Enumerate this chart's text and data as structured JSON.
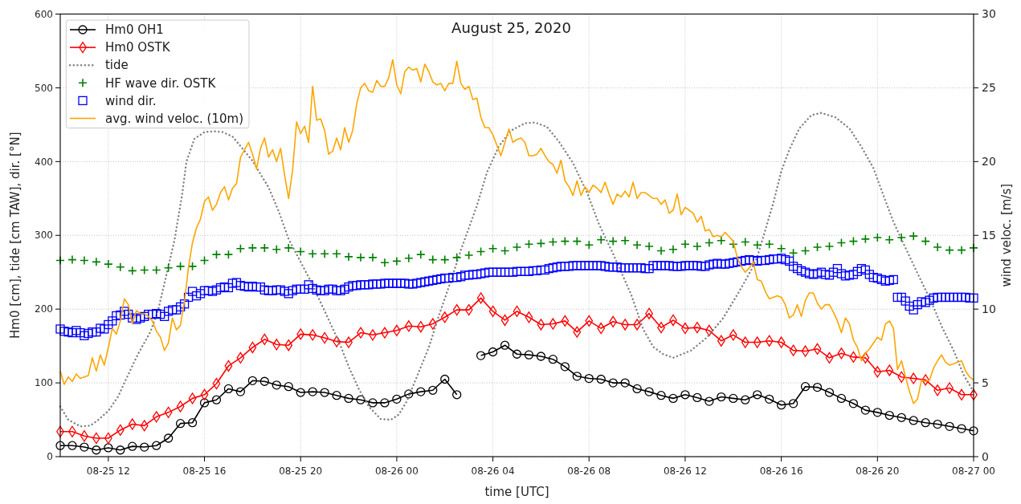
{
  "chart_data": {
    "type": "line",
    "title": "August 25, 2020",
    "xlabel": "time [UTC]",
    "ylabel": "Hm0 [cm], tide [cm TAW], dir. [°N]",
    "y2label": "wind veloc. [m/s]",
    "xlim": [
      "2020-08-25T10:00",
      "2020-08-27T00:00"
    ],
    "xticks": [
      {
        "value": "2020-08-25T12:00",
        "label": "08-25 12"
      },
      {
        "value": "2020-08-25T16:00",
        "label": "08-25 16"
      },
      {
        "value": "2020-08-25T20:00",
        "label": "08-25 20"
      },
      {
        "value": "2020-08-26T00:00",
        "label": "08-26 00"
      },
      {
        "value": "2020-08-26T04:00",
        "label": "08-26 04"
      },
      {
        "value": "2020-08-26T08:00",
        "label": "08-26 08"
      },
      {
        "value": "2020-08-26T12:00",
        "label": "08-26 12"
      },
      {
        "value": "2020-08-26T16:00",
        "label": "08-26 16"
      },
      {
        "value": "2020-08-26T20:00",
        "label": "08-26 20"
      },
      {
        "value": "2020-08-27T00:00",
        "label": "08-27 00"
      }
    ],
    "ylim": [
      0,
      600
    ],
    "yticks": [
      0,
      100,
      200,
      300,
      400,
      500,
      600
    ],
    "y2lim": [
      0,
      30
    ],
    "y2ticks": [
      0,
      5,
      10,
      15,
      20,
      25,
      30
    ],
    "grid": true,
    "legend": "top left",
    "x": [
      "2020-08-25T10:00",
      "2020-08-25T10:10",
      "2020-08-25T10:20",
      "2020-08-25T10:30",
      "2020-08-25T10:40",
      "2020-08-25T10:50",
      "2020-08-25T11:00",
      "2020-08-25T11:10",
      "2020-08-25T11:20",
      "2020-08-25T11:30",
      "2020-08-25T11:40",
      "2020-08-25T11:50",
      "2020-08-25T12:00",
      "2020-08-25T12:10",
      "2020-08-25T12:20",
      "2020-08-25T12:30",
      "2020-08-25T12:40",
      "2020-08-25T12:50",
      "2020-08-25T13:00",
      "2020-08-25T13:10",
      "2020-08-25T13:20",
      "2020-08-25T13:30",
      "2020-08-25T13:40",
      "2020-08-25T13:50",
      "2020-08-25T14:00",
      "2020-08-25T14:10",
      "2020-08-25T14:20",
      "2020-08-25T14:30",
      "2020-08-25T14:40",
      "2020-08-25T14:50",
      "2020-08-25T15:00",
      "2020-08-25T15:10",
      "2020-08-25T15:20",
      "2020-08-25T15:30",
      "2020-08-25T15:40",
      "2020-08-25T15:50",
      "2020-08-25T16:00",
      "2020-08-25T16:10",
      "2020-08-25T16:20",
      "2020-08-25T16:30",
      "2020-08-25T16:40",
      "2020-08-25T16:50",
      "2020-08-25T17:00",
      "2020-08-25T17:10",
      "2020-08-25T17:20",
      "2020-08-25T17:30",
      "2020-08-25T17:40",
      "2020-08-25T17:50",
      "2020-08-25T18:00",
      "2020-08-25T18:10",
      "2020-08-25T18:20",
      "2020-08-25T18:30",
      "2020-08-25T18:40",
      "2020-08-25T18:50",
      "2020-08-25T19:00",
      "2020-08-25T19:10",
      "2020-08-25T19:20",
      "2020-08-25T19:30",
      "2020-08-25T19:40",
      "2020-08-25T19:50",
      "2020-08-25T20:00",
      "2020-08-25T20:10",
      "2020-08-25T20:20",
      "2020-08-25T20:30",
      "2020-08-25T20:40",
      "2020-08-25T20:50",
      "2020-08-25T21:00",
      "2020-08-25T21:10",
      "2020-08-25T21:20",
      "2020-08-25T21:30",
      "2020-08-25T21:40",
      "2020-08-25T21:50",
      "2020-08-25T22:00",
      "2020-08-25T22:10",
      "2020-08-25T22:20",
      "2020-08-25T22:30",
      "2020-08-25T22:40",
      "2020-08-25T22:50",
      "2020-08-25T23:00",
      "2020-08-25T23:10",
      "2020-08-25T23:20",
      "2020-08-25T23:30",
      "2020-08-25T23:40",
      "2020-08-25T23:50",
      "2020-08-26T00:00",
      "2020-08-26T00:10",
      "2020-08-26T00:20",
      "2020-08-26T00:30",
      "2020-08-26T00:40",
      "2020-08-26T00:50",
      "2020-08-26T01:00",
      "2020-08-26T01:10",
      "2020-08-26T01:20",
      "2020-08-26T01:30",
      "2020-08-26T01:40",
      "2020-08-26T01:50",
      "2020-08-26T02:00",
      "2020-08-26T02:10",
      "2020-08-26T02:20",
      "2020-08-26T02:30",
      "2020-08-26T02:40",
      "2020-08-26T02:50",
      "2020-08-26T03:00",
      "2020-08-26T03:10",
      "2020-08-26T03:20",
      "2020-08-26T03:30",
      "2020-08-26T03:40",
      "2020-08-26T03:50",
      "2020-08-26T04:00",
      "2020-08-26T04:10",
      "2020-08-26T04:20",
      "2020-08-26T04:30",
      "2020-08-26T04:40",
      "2020-08-26T04:50",
      "2020-08-26T05:00",
      "2020-08-26T05:10",
      "2020-08-26T05:20",
      "2020-08-26T05:30",
      "2020-08-26T05:40",
      "2020-08-26T05:50",
      "2020-08-26T06:00",
      "2020-08-26T06:10",
      "2020-08-26T06:20",
      "2020-08-26T06:30",
      "2020-08-26T06:40",
      "2020-08-26T06:50",
      "2020-08-26T07:00",
      "2020-08-26T07:10",
      "2020-08-26T07:20",
      "2020-08-26T07:30",
      "2020-08-26T07:40",
      "2020-08-26T07:50",
      "2020-08-26T08:00",
      "2020-08-26T08:10",
      "2020-08-26T08:20",
      "2020-08-26T08:30",
      "2020-08-26T08:40",
      "2020-08-26T08:50",
      "2020-08-26T09:00",
      "2020-08-26T09:10",
      "2020-08-26T09:20",
      "2020-08-26T09:30",
      "2020-08-26T09:40",
      "2020-08-26T09:50",
      "2020-08-26T10:00",
      "2020-08-26T10:10",
      "2020-08-26T10:20",
      "2020-08-26T10:30",
      "2020-08-26T10:40",
      "2020-08-26T10:50",
      "2020-08-26T11:00",
      "2020-08-26T11:10",
      "2020-08-26T11:20",
      "2020-08-26T11:30",
      "2020-08-26T11:40",
      "2020-08-26T11:50",
      "2020-08-26T12:00",
      "2020-08-26T12:10",
      "2020-08-26T12:20",
      "2020-08-26T12:30",
      "2020-08-26T12:40",
      "2020-08-26T12:50",
      "2020-08-26T13:00",
      "2020-08-26T13:10",
      "2020-08-26T13:20",
      "2020-08-26T13:30",
      "2020-08-26T13:40",
      "2020-08-26T13:50",
      "2020-08-26T14:00",
      "2020-08-26T14:10",
      "2020-08-26T14:20",
      "2020-08-26T14:30",
      "2020-08-26T14:40",
      "2020-08-26T14:50",
      "2020-08-26T15:00",
      "2020-08-26T15:10",
      "2020-08-26T15:20",
      "2020-08-26T15:30",
      "2020-08-26T15:40",
      "2020-08-26T15:50",
      "2020-08-26T16:00",
      "2020-08-26T16:10",
      "2020-08-26T16:20",
      "2020-08-26T16:30",
      "2020-08-26T16:40",
      "2020-08-26T16:50",
      "2020-08-26T17:00",
      "2020-08-26T17:10",
      "2020-08-26T17:20",
      "2020-08-26T17:30",
      "2020-08-26T17:40",
      "2020-08-26T17:50",
      "2020-08-26T18:00",
      "2020-08-26T18:10",
      "2020-08-26T18:20",
      "2020-08-26T18:30",
      "2020-08-26T18:40",
      "2020-08-26T18:50",
      "2020-08-26T19:00",
      "2020-08-26T19:10",
      "2020-08-26T19:20",
      "2020-08-26T19:30",
      "2020-08-26T19:40",
      "2020-08-26T19:50",
      "2020-08-26T20:00",
      "2020-08-26T20:10",
      "2020-08-26T20:20",
      "2020-08-26T20:30",
      "2020-08-26T20:40",
      "2020-08-26T20:50",
      "2020-08-26T21:00",
      "2020-08-26T21:10",
      "2020-08-26T21:20",
      "2020-08-26T21:30",
      "2020-08-26T21:40",
      "2020-08-26T21:50",
      "2020-08-26T22:00",
      "2020-08-26T22:10",
      "2020-08-26T22:20",
      "2020-08-26T22:30",
      "2020-08-26T22:40",
      "2020-08-26T22:50",
      "2020-08-26T23:00",
      "2020-08-26T23:10",
      "2020-08-26T23:20",
      "2020-08-26T23:30",
      "2020-08-26T23:40",
      "2020-08-26T23:50",
      "2020-08-27T00:00"
    ],
    "series": [
      {
        "name": "Hm0 OH1",
        "color": "#000000",
        "marker": "circle",
        "x": [
          "2020-08-25T10:00",
          "2020-08-25T10:30",
          "2020-08-25T11:00",
          "2020-08-25T11:30",
          "2020-08-25T12:00",
          "2020-08-25T12:30",
          "2020-08-25T13:00",
          "2020-08-25T13:30",
          "2020-08-25T14:00",
          "2020-08-25T14:30",
          "2020-08-25T15:00",
          "2020-08-25T15:30",
          "2020-08-25T16:00",
          "2020-08-25T16:30",
          "2020-08-25T17:00",
          "2020-08-25T17:30",
          "2020-08-25T18:00",
          "2020-08-25T18:30",
          "2020-08-25T19:00",
          "2020-08-25T19:30",
          "2020-08-25T20:00",
          "2020-08-25T20:30",
          "2020-08-25T21:00",
          "2020-08-25T21:30",
          "2020-08-25T22:00",
          "2020-08-25T22:30",
          "2020-08-25T23:00",
          "2020-08-25T23:30",
          "2020-08-26T00:00",
          "2020-08-26T00:30",
          "2020-08-26T01:00",
          "2020-08-26T01:30",
          "2020-08-26T02:00",
          "2020-08-26T02:30",
          "2020-08-26T03:00",
          "2020-08-26T03:30",
          "2020-08-26T04:00",
          "2020-08-26T04:30",
          "2020-08-26T05:00",
          "2020-08-26T05:30",
          "2020-08-26T06:00",
          "2020-08-26T06:30",
          "2020-08-26T07:00",
          "2020-08-26T07:30",
          "2020-08-26T08:00",
          "2020-08-26T08:30",
          "2020-08-26T09:00",
          "2020-08-26T09:30",
          "2020-08-26T10:00",
          "2020-08-26T10:30",
          "2020-08-26T11:00",
          "2020-08-26T11:30",
          "2020-08-26T12:00",
          "2020-08-26T12:30",
          "2020-08-26T13:00",
          "2020-08-26T13:30",
          "2020-08-26T14:00",
          "2020-08-26T14:30",
          "2020-08-26T15:00",
          "2020-08-26T15:30",
          "2020-08-26T16:00",
          "2020-08-26T16:30",
          "2020-08-26T17:00",
          "2020-08-26T17:30",
          "2020-08-26T18:00",
          "2020-08-26T18:30",
          "2020-08-26T19:00",
          "2020-08-26T19:30",
          "2020-08-26T20:00",
          "2020-08-26T20:30",
          "2020-08-26T21:00",
          "2020-08-26T21:30",
          "2020-08-26T22:00",
          "2020-08-26T22:30",
          "2020-08-26T23:00",
          "2020-08-26T23:30",
          "2020-08-27T00:00"
        ],
        "values": [
          15,
          15,
          13,
          9,
          12,
          9,
          14,
          13,
          15,
          25,
          45,
          46,
          73,
          77,
          92,
          88,
          103,
          102,
          97,
          95,
          87,
          88,
          87,
          83,
          79,
          77,
          73,
          73,
          78,
          85,
          88,
          90,
          105,
          84,
          null,
          137,
          142,
          151,
          139,
          138,
          136,
          132,
          122,
          109,
          106,
          105,
          100,
          100,
          92,
          88,
          83,
          79,
          84,
          80,
          75,
          81,
          79,
          77,
          84,
          78,
          70,
          72,
          95,
          94,
          87,
          79,
          72,
          63,
          60,
          56,
          53,
          49,
          46,
          44,
          41,
          38,
          35
        ]
      },
      {
        "name": "Hm0 OSTK",
        "color": "#ff0000",
        "marker": "diamond",
        "x": [
          "2020-08-25T10:00",
          "2020-08-25T10:30",
          "2020-08-25T11:00",
          "2020-08-25T11:30",
          "2020-08-25T12:00",
          "2020-08-25T12:30",
          "2020-08-25T13:00",
          "2020-08-25T13:30",
          "2020-08-25T14:00",
          "2020-08-25T14:30",
          "2020-08-25T15:00",
          "2020-08-25T15:30",
          "2020-08-25T16:00",
          "2020-08-25T16:30",
          "2020-08-25T17:00",
          "2020-08-25T17:30",
          "2020-08-25T18:00",
          "2020-08-25T18:30",
          "2020-08-25T19:00",
          "2020-08-25T19:30",
          "2020-08-25T20:00",
          "2020-08-25T20:30",
          "2020-08-25T21:00",
          "2020-08-25T21:30",
          "2020-08-25T22:00",
          "2020-08-25T22:30",
          "2020-08-25T23:00",
          "2020-08-25T23:30",
          "2020-08-26T00:00",
          "2020-08-26T00:30",
          "2020-08-26T01:00",
          "2020-08-26T01:30",
          "2020-08-26T02:00",
          "2020-08-26T02:30",
          "2020-08-26T03:00",
          "2020-08-26T03:30",
          "2020-08-26T04:00",
          "2020-08-26T04:30",
          "2020-08-26T05:00",
          "2020-08-26T05:30",
          "2020-08-26T06:00",
          "2020-08-26T06:30",
          "2020-08-26T07:00",
          "2020-08-26T07:30",
          "2020-08-26T08:00",
          "2020-08-26T08:30",
          "2020-08-26T09:00",
          "2020-08-26T09:30",
          "2020-08-26T10:00",
          "2020-08-26T10:30",
          "2020-08-26T11:00",
          "2020-08-26T11:30",
          "2020-08-26T12:00",
          "2020-08-26T12:30",
          "2020-08-26T13:00",
          "2020-08-26T13:30",
          "2020-08-26T14:00",
          "2020-08-26T14:30",
          "2020-08-26T15:00",
          "2020-08-26T15:30",
          "2020-08-26T16:00",
          "2020-08-26T16:30",
          "2020-08-26T17:00",
          "2020-08-26T17:30",
          "2020-08-26T18:00",
          "2020-08-26T18:30",
          "2020-08-26T19:00",
          "2020-08-26T19:30",
          "2020-08-26T20:00",
          "2020-08-26T20:30",
          "2020-08-26T21:00",
          "2020-08-26T21:30",
          "2020-08-26T22:00",
          "2020-08-26T22:30",
          "2020-08-26T23:00",
          "2020-08-26T23:30",
          "2020-08-27T00:00"
        ],
        "values": [
          34,
          34,
          28,
          25,
          25,
          36,
          44,
          42,
          54,
          60,
          68,
          79,
          84,
          99,
          123,
          134,
          148,
          159,
          152,
          151,
          166,
          165,
          161,
          156,
          155,
          168,
          165,
          168,
          171,
          177,
          176,
          180,
          189,
          199,
          199,
          215,
          197,
          185,
          197,
          189,
          179,
          180,
          184,
          169,
          184,
          174,
          183,
          179,
          179,
          194,
          175,
          185,
          174,
          175,
          171,
          157,
          165,
          155,
          155,
          157,
          155,
          144,
          143,
          146,
          134,
          140,
          135,
          134,
          115,
          117,
          108,
          106,
          104,
          90,
          93,
          84,
          84
        ]
      },
      {
        "name": "tide",
        "color": "#808080",
        "line_style": "dotted",
        "x": [
          "2020-08-25T10:00",
          "2020-08-25T10:20",
          "2020-08-25T10:50",
          "2020-08-25T11:15",
          "2020-08-25T11:35",
          "2020-08-25T12:00",
          "2020-08-25T12:25",
          "2020-08-25T12:40",
          "2020-08-25T13:15",
          "2020-08-25T13:45",
          "2020-08-25T14:05",
          "2020-08-25T14:45",
          "2020-08-25T15:05",
          "2020-08-25T15:15",
          "2020-08-25T15:35",
          "2020-08-25T16:00",
          "2020-08-25T16:25",
          "2020-08-25T16:45",
          "2020-08-25T17:10",
          "2020-08-25T17:30",
          "2020-08-25T18:00",
          "2020-08-25T18:40",
          "2020-08-25T19:05",
          "2020-08-25T19:30",
          "2020-08-25T20:00",
          "2020-08-25T20:25",
          "2020-08-25T20:50",
          "2020-08-25T21:15",
          "2020-08-25T21:40",
          "2020-08-25T22:00",
          "2020-08-25T22:25",
          "2020-08-25T22:50",
          "2020-08-25T23:20",
          "2020-08-25T23:45",
          "2020-08-26T00:05",
          "2020-08-26T00:25",
          "2020-08-26T00:50",
          "2020-08-26T01:20",
          "2020-08-26T01:45",
          "2020-08-26T02:15",
          "2020-08-26T02:40",
          "2020-08-26T03:00",
          "2020-08-26T03:20",
          "2020-08-26T03:45",
          "2020-08-26T04:15",
          "2020-08-26T04:45",
          "2020-08-26T05:20",
          "2020-08-26T05:45",
          "2020-08-26T06:15",
          "2020-08-26T06:45",
          "2020-08-26T07:20",
          "2020-08-26T07:55",
          "2020-08-26T08:25",
          "2020-08-26T09:00",
          "2020-08-26T09:45",
          "2020-08-26T10:15",
          "2020-08-26T10:40",
          "2020-08-26T11:05",
          "2020-08-26T11:30",
          "2020-08-26T12:15",
          "2020-08-26T12:55",
          "2020-08-26T13:35",
          "2020-08-26T14:15",
          "2020-08-26T14:45",
          "2020-08-26T15:00",
          "2020-08-26T15:20",
          "2020-08-26T15:40",
          "2020-08-26T16:00",
          "2020-08-26T16:20",
          "2020-08-26T16:45",
          "2020-08-26T17:15",
          "2020-08-26T17:40",
          "2020-08-26T18:15",
          "2020-08-26T18:50",
          "2020-08-26T19:20",
          "2020-08-26T19:50",
          "2020-08-26T20:15",
          "2020-08-26T20:40",
          "2020-08-26T21:10",
          "2020-08-26T21:45",
          "2020-08-26T22:15",
          "2020-08-26T22:40",
          "2020-08-26T23:10",
          "2020-08-26T23:35",
          "2020-08-27T00:00"
        ],
        "values": [
          68,
          50,
          41,
          42,
          50,
          62,
          82,
          100,
          140,
          169,
          200,
          293,
          358,
          400,
          431,
          440,
          441,
          440,
          434,
          421,
          401,
          365,
          333,
          295,
          264,
          238,
          209,
          180,
          150,
          122,
          92,
          68,
          51,
          50,
          57,
          75,
          108,
          148,
          191,
          238,
          280,
          310,
          340,
          385,
          421,
          442,
          452,
          453,
          447,
          427,
          398,
          358,
          315,
          275,
          220,
          173,
          149,
          139,
          134,
          144,
          162,
          188,
          224,
          253,
          271,
          307,
          344,
          387,
          416,
          445,
          463,
          466,
          460,
          445,
          420,
          391,
          354,
          318,
          283,
          243,
          209,
          177,
          144,
          111,
          88
        ]
      },
      {
        "name": "HF wave dir. OSTK",
        "type": "scatter",
        "color": "#008000",
        "marker": "cross",
        "x": [
          "2020-08-25T10:00",
          "2020-08-25T10:30",
          "2020-08-25T11:00",
          "2020-08-25T11:30",
          "2020-08-25T12:00",
          "2020-08-25T12:30",
          "2020-08-25T13:00",
          "2020-08-25T13:30",
          "2020-08-25T14:00",
          "2020-08-25T14:30",
          "2020-08-25T15:00",
          "2020-08-25T15:30",
          "2020-08-25T16:00",
          "2020-08-25T16:30",
          "2020-08-25T17:00",
          "2020-08-25T17:30",
          "2020-08-25T18:00",
          "2020-08-25T18:30",
          "2020-08-25T19:00",
          "2020-08-25T19:30",
          "2020-08-25T20:00",
          "2020-08-25T20:30",
          "2020-08-25T21:00",
          "2020-08-25T21:30",
          "2020-08-25T22:00",
          "2020-08-25T22:30",
          "2020-08-25T23:00",
          "2020-08-25T23:30",
          "2020-08-26T00:00",
          "2020-08-26T00:30",
          "2020-08-26T01:00",
          "2020-08-26T01:30",
          "2020-08-26T02:00",
          "2020-08-26T02:30",
          "2020-08-26T03:00",
          "2020-08-26T03:30",
          "2020-08-26T04:00",
          "2020-08-26T04:30",
          "2020-08-26T05:00",
          "2020-08-26T05:30",
          "2020-08-26T06:00",
          "2020-08-26T06:30",
          "2020-08-26T07:00",
          "2020-08-26T07:30",
          "2020-08-26T08:00",
          "2020-08-26T08:30",
          "2020-08-26T09:00",
          "2020-08-26T09:30",
          "2020-08-26T10:00",
          "2020-08-26T10:30",
          "2020-08-26T11:00",
          "2020-08-26T11:30",
          "2020-08-26T12:00",
          "2020-08-26T12:30",
          "2020-08-26T13:00",
          "2020-08-26T13:30",
          "2020-08-26T14:00",
          "2020-08-26T14:30",
          "2020-08-26T15:00",
          "2020-08-26T15:30",
          "2020-08-26T16:00",
          "2020-08-26T16:30",
          "2020-08-26T17:00",
          "2020-08-26T17:30",
          "2020-08-26T18:00",
          "2020-08-26T18:30",
          "2020-08-26T19:00",
          "2020-08-26T19:30",
          "2020-08-26T20:00",
          "2020-08-26T20:30",
          "2020-08-26T21:00",
          "2020-08-26T21:30",
          "2020-08-26T22:00",
          "2020-08-26T22:30",
          "2020-08-26T23:00",
          "2020-08-26T23:30",
          "2020-08-27T00:00"
        ],
        "values": [
          266,
          267,
          266,
          264,
          261,
          257,
          252,
          253,
          253,
          256,
          258,
          258,
          266,
          274,
          274,
          282,
          283,
          283,
          281,
          283,
          278,
          275,
          275,
          275,
          271,
          270,
          270,
          263,
          265,
          269,
          274,
          267,
          267,
          270,
          273,
          278,
          282,
          279,
          284,
          288,
          289,
          291,
          292,
          292,
          287,
          294,
          292,
          293,
          287,
          285,
          279,
          281,
          288,
          285,
          290,
          293,
          288,
          291,
          287,
          288,
          282,
          276,
          279,
          284,
          285,
          290,
          292,
          295,
          297,
          294,
          297,
          299,
          292,
          284,
          280,
          280,
          283
        ]
      },
      {
        "name": "wind dir.",
        "type": "scatter",
        "color": "#0000ff",
        "marker": "square",
        "values": [
          173,
          170,
          169,
          168,
          171,
          168,
          164,
          167,
          169,
          169,
          174,
          173,
          179,
          184,
          191,
          192,
          197,
          193,
          188,
          186,
          188,
          190,
          193,
          193,
          194,
          193,
          190,
          197,
          199,
          199,
          203,
          207,
          216,
          224,
          218,
          221,
          225,
          225,
          224,
          226,
          229,
          230,
          229,
          235,
          236,
          232,
          231,
          230,
          231,
          230,
          230,
          226,
          225,
          225,
          226,
          226,
          224,
          221,
          225,
          227,
          227,
          227,
          233,
          228,
          226,
          225,
          225,
          227,
          227,
          225,
          225,
          227,
          230,
          232,
          232,
          233,
          233,
          233,
          234,
          234,
          234,
          235,
          235,
          235,
          235,
          235,
          235,
          234,
          234,
          235,
          236,
          237,
          238,
          239,
          240,
          241,
          242,
          242,
          243,
          243,
          244,
          246,
          246,
          247,
          247,
          248,
          249,
          250,
          250,
          250,
          250,
          250,
          250,
          250,
          251,
          251,
          251,
          251,
          252,
          252,
          253,
          253,
          255,
          256,
          257,
          258,
          258,
          258,
          259,
          259,
          259,
          259,
          259,
          259,
          259,
          259,
          258,
          257,
          257,
          257,
          256,
          256,
          256,
          256,
          256,
          256,
          255,
          255,
          259,
          259,
          259,
          259,
          259,
          258,
          258,
          258,
          259,
          259,
          259,
          259,
          258,
          258,
          260,
          261,
          262,
          261,
          261,
          262,
          263,
          264,
          265,
          266,
          267,
          266,
          265,
          266,
          266,
          267,
          268,
          268,
          269,
          267,
          265,
          258,
          255,
          252,
          250,
          248,
          247,
          248,
          250,
          247,
          246,
          250,
          255,
          248,
          245,
          246,
          247,
          251,
          255,
          253,
          247,
          243,
          242,
          240,
          238,
          239,
          240,
          216,
          216,
          211,
          204,
          199,
          206,
          210,
          209,
          212,
          215,
          216,
          216,
          216,
          216,
          216,
          216,
          216,
          216,
          215,
          215
        ]
      },
      {
        "name": "avg. wind veloc. (10m)",
        "color": "#ffa500",
        "axis": "y2",
        "values": [
          5.8,
          4.9,
          5.4,
          5.1,
          5.6,
          5.3,
          5.4,
          5.5,
          6.7,
          5.8,
          6.9,
          6.2,
          7.4,
          8.7,
          8.3,
          9.2,
          10.7,
          10.3,
          9.0,
          9.9,
          9.7,
          9.7,
          9.5,
          9.2,
          8.5,
          8.1,
          7.2,
          7.7,
          9.4,
          8.6,
          8.9,
          10.5,
          12.8,
          14.5,
          15.5,
          16.1,
          17.3,
          17.6,
          16.7,
          17.1,
          17.9,
          18.3,
          17.4,
          18.2,
          18.5,
          20.3,
          20.8,
          21.3,
          20.5,
          19.5,
          20.9,
          21.6,
          20.3,
          20.8,
          20.0,
          20.9,
          19.1,
          17.5,
          19.4,
          22.7,
          21.9,
          22.4,
          21.3,
          25.1,
          22.8,
          22.9,
          22.1,
          20.5,
          20.7,
          21.6,
          20.8,
          22.3,
          21.3,
          22.1,
          23.9,
          25.0,
          25.3,
          24.8,
          24.7,
          25.5,
          25.1,
          25.1,
          25.7,
          26.9,
          25.2,
          24.6,
          26.1,
          26.4,
          26.2,
          26.3,
          25.4,
          26.6,
          26.1,
          25.4,
          25.2,
          25.3,
          24.8,
          25.3,
          25.3,
          26.8,
          25.3,
          24.9,
          25.1,
          24.2,
          24.3,
          23.0,
          22.3,
          22.3,
          21.8,
          21.1,
          20.4,
          21.3,
          22.2,
          21.3,
          21.5,
          21.6,
          21.3,
          20.4,
          20.4,
          20.5,
          20.9,
          20.4,
          20.0,
          19.8,
          19.2,
          20.1,
          18.7,
          18.3,
          17.7,
          18.7,
          17.7,
          18.3,
          17.9,
          18.4,
          18.2,
          17.9,
          18.6,
          17.8,
          17.1,
          17.8,
          17.6,
          18.0,
          17.6,
          18.6,
          17.5,
          17.9,
          17.9,
          17.7,
          17.5,
          17.5,
          17.1,
          17.4,
          16.5,
          16.7,
          17.8,
          16.4,
          16.9,
          16.7,
          16.5,
          15.9,
          16.3,
          15.3,
          15.4,
          14.9,
          15.0,
          14.9,
          15.2,
          14.9,
          14.6,
          13.5,
          12.9,
          12.5,
          12.8,
          13.2,
          12.0,
          11.9,
          11.2,
          10.7,
          10.8,
          10.9,
          10.8,
          10.3,
          9.4,
          9.6,
          10.3,
          9.5,
          10.6,
          11.1,
          11.1,
          10.4,
          10.0,
          10.3,
          10.3,
          9.8,
          9.2,
          8.4,
          9.4,
          9.0,
          7.9,
          7.4,
          6.5,
          7.0,
          7.3,
          7.7,
          8.1,
          7.9,
          9.0,
          9.2,
          8.7,
          5.9,
          6.5,
          5.4,
          4.4,
          3.6,
          3.9,
          5.2,
          5.1,
          5.2,
          6.0,
          6.5,
          6.9,
          6.4,
          6.2,
          6.3,
          6.4,
          6.5,
          5.8,
          5.4,
          5.2
        ]
      }
    ]
  }
}
